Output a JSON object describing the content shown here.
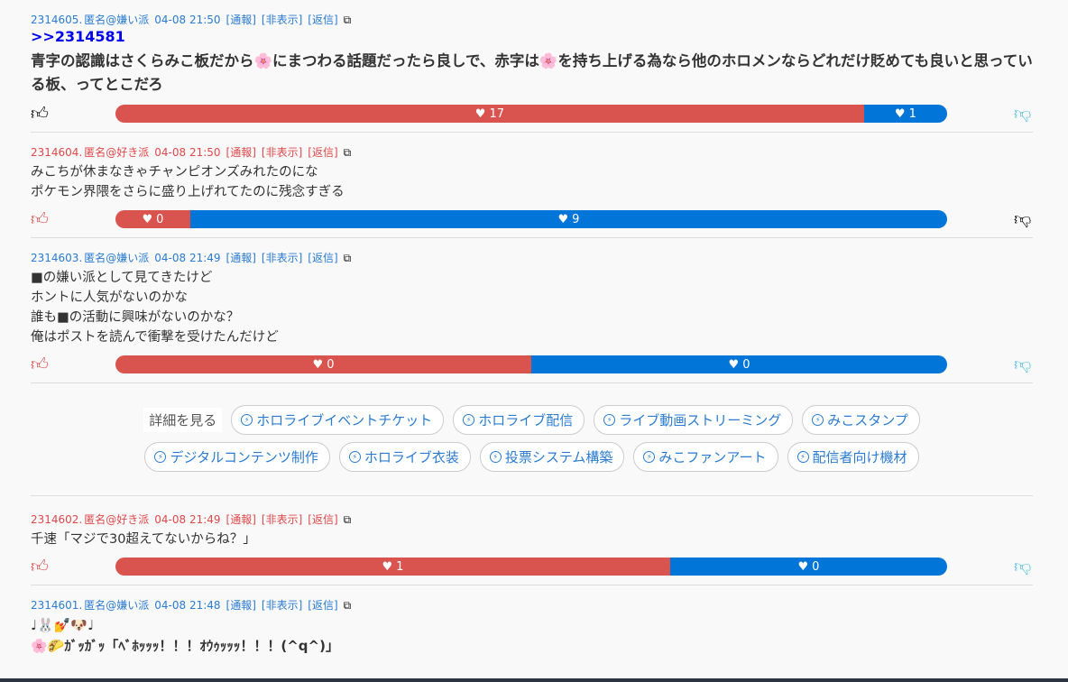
{
  "colors": {
    "like": "#d9534f",
    "dislike": "#0275d8",
    "thumb_up": "#d9534f",
    "thumb_down": "#5bc0de",
    "voted": "#000000"
  },
  "posts": [
    {
      "id": "2314605.",
      "author": "匿名@嫌い派",
      "date": "04-08 21:50",
      "report": "[通報]",
      "hide": "[非表示]",
      "reply": "[返信]",
      "anchor": ">>2314581",
      "body": "青字の認識はさくらみこ板だから🌸にまつわる話題だったら良しで、赤字は🌸を持ち上げる為なら他のホロメンならどれだけ貶めても良いと思っている板、ってとこだろ",
      "likes": "17",
      "dislikes": "1",
      "like_percent": 90,
      "voted": "up"
    },
    {
      "id": "2314604.",
      "author": "匿名@好き派",
      "date": "04-08 21:50",
      "report": "[通報]",
      "hide": "[非表示]",
      "reply": "[返信]",
      "body": "みこちが休まなきゃチャンピオンズみれたのにな\nポケモン界隈をさらに盛り上げれてたのに残念すぎる",
      "likes": "0",
      "dislikes": "9",
      "like_percent": 9,
      "voted": "down"
    },
    {
      "id": "2314603.",
      "author": "匿名@嫌い派",
      "date": "04-08 21:49",
      "report": "[通報]",
      "hide": "[非表示]",
      "reply": "[返信]",
      "body": "■の嫌い派として見てきたけど\nホントに人気がないのかな\n誰も■の活動に興味がないのかな？\n俺はポストを読んで衝撃を受けたんだけど",
      "likes": "0",
      "dislikes": "0",
      "like_percent": 50,
      "voted": ""
    },
    {
      "id": "2314602.",
      "author": "匿名@好き派",
      "date": "04-08 21:49",
      "report": "[通報]",
      "hide": "[非表示]",
      "reply": "[返信]",
      "body": "千速「マジで30超えてないからね？」",
      "likes": "1",
      "dislikes": "0",
      "like_percent": 67,
      "voted": ""
    },
    {
      "id": "2314601.",
      "author": "匿名@嫌い派",
      "date": "04-08 21:48",
      "report": "[通報]",
      "hide": "[非表示]",
      "reply": "[返信]",
      "body": "♩🐰💅🐶♩\n🌸🌮ｶﾞｯｶﾞｯ「ﾍﾞﾎｯｯｯ！！！ｵｳｩｯｯｯ！！！(^q^)」"
    }
  ],
  "tags": {
    "label": "詳細を見る",
    "row1": [
      "ホロライブイベントチケット",
      "ホロライブ配信",
      "ライブ動画ストリーミング",
      "みこスタンプ"
    ],
    "row2": [
      "デジタルコンテンツ制作",
      "ホロライブ衣装",
      "投票システム構築",
      "みこファンアート",
      "配信者向け機材"
    ]
  }
}
